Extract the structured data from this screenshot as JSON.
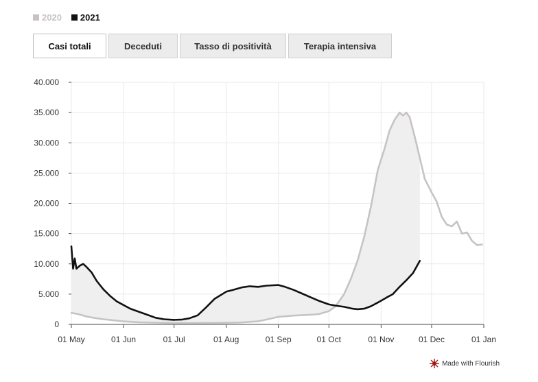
{
  "legend": [
    {
      "label": "2020",
      "color": "#c8c3c3"
    },
    {
      "label": "2021",
      "color": "#111111"
    }
  ],
  "tabs": [
    {
      "label": "Casi totali",
      "active": true
    },
    {
      "label": "Deceduti",
      "active": false
    },
    {
      "label": "Tasso di positività",
      "active": false
    },
    {
      "label": "Terapia intensiva",
      "active": false
    }
  ],
  "credit": {
    "label": "Made with Flourish",
    "icon": "flourish-logo-icon",
    "color": "#a11b1b"
  },
  "chart_data": {
    "type": "line",
    "title": "",
    "xlabel": "",
    "ylabel": "",
    "ylim": [
      0,
      40000
    ],
    "xlim": [
      "01 May",
      "01 Jan"
    ],
    "grid": true,
    "legend_position": "top-left",
    "y_ticks": [
      {
        "value": 0,
        "label": "0"
      },
      {
        "value": 5000,
        "label": "5.000"
      },
      {
        "value": 10000,
        "label": "10.000"
      },
      {
        "value": 15000,
        "label": "15.000"
      },
      {
        "value": 20000,
        "label": "20.000"
      },
      {
        "value": 25000,
        "label": "25.000"
      },
      {
        "value": 30000,
        "label": "30.000"
      },
      {
        "value": 35000,
        "label": "35.000"
      },
      {
        "value": 40000,
        "label": "40.000"
      }
    ],
    "x_ticks": [
      {
        "date": "01 May",
        "label": "01 May"
      },
      {
        "date": "01 Jun",
        "label": "01 Jun"
      },
      {
        "date": "01 Jul",
        "label": "01 Jul"
      },
      {
        "date": "01 Aug",
        "label": "01 Aug"
      },
      {
        "date": "01 Sep",
        "label": "01 Sep"
      },
      {
        "date": "01 Oct",
        "label": "01 Oct"
      },
      {
        "date": "01 Nov",
        "label": "01 Nov"
      },
      {
        "date": "01 Dec",
        "label": "01 Dec"
      },
      {
        "date": "01 Jan",
        "label": "01 Jan"
      }
    ],
    "series": [
      {
        "name": "2020",
        "color": "#c8c3c3",
        "points": [
          [
            "01 May",
            1900
          ],
          [
            "05 May",
            1700
          ],
          [
            "10 May",
            1300
          ],
          [
            "15 May",
            1050
          ],
          [
            "20 May",
            850
          ],
          [
            "25 May",
            700
          ],
          [
            "01 Jun",
            500
          ],
          [
            "10 Jun",
            350
          ],
          [
            "20 Jun",
            280
          ],
          [
            "01 Jul",
            220
          ],
          [
            "10 Jul",
            230
          ],
          [
            "20 Jul",
            240
          ],
          [
            "01 Aug",
            260
          ],
          [
            "10 Aug",
            320
          ],
          [
            "20 Aug",
            520
          ],
          [
            "25 Aug",
            800
          ],
          [
            "01 Sep",
            1250
          ],
          [
            "10 Sep",
            1450
          ],
          [
            "20 Sep",
            1600
          ],
          [
            "25 Sep",
            1700
          ],
          [
            "01 Oct",
            2200
          ],
          [
            "05 Oct",
            3000
          ],
          [
            "10 Oct",
            5000
          ],
          [
            "14 Oct",
            7500
          ],
          [
            "18 Oct",
            10500
          ],
          [
            "22 Oct",
            14500
          ],
          [
            "26 Oct",
            19500
          ],
          [
            "30 Oct",
            25500
          ],
          [
            "03 Nov",
            29000
          ],
          [
            "06 Nov",
            32000
          ],
          [
            "09 Nov",
            33800
          ],
          [
            "12 Nov",
            35000
          ],
          [
            "14 Nov",
            34500
          ],
          [
            "16 Nov",
            35000
          ],
          [
            "18 Nov",
            34200
          ],
          [
            "21 Nov",
            31000
          ],
          [
            "24 Nov",
            27500
          ],
          [
            "27 Nov",
            24000
          ],
          [
            "01 Dec",
            21800
          ],
          [
            "04 Dec",
            20300
          ],
          [
            "07 Dec",
            17800
          ],
          [
            "10 Dec",
            16500
          ],
          [
            "13 Dec",
            16200
          ],
          [
            "16 Dec",
            17000
          ],
          [
            "19 Dec",
            15000
          ],
          [
            "22 Dec",
            15200
          ],
          [
            "25 Dec",
            13800
          ],
          [
            "28 Dec",
            13100
          ],
          [
            "31 Dec",
            13200
          ]
        ]
      },
      {
        "name": "2021",
        "color": "#111111",
        "points": [
          [
            "01 May",
            12900
          ],
          [
            "02 May",
            9200
          ],
          [
            "03 May",
            10900
          ],
          [
            "04 May",
            9200
          ],
          [
            "06 May",
            9700
          ],
          [
            "08 May",
            10000
          ],
          [
            "10 May",
            9500
          ],
          [
            "13 May",
            8600
          ],
          [
            "16 May",
            7200
          ],
          [
            "20 May",
            5800
          ],
          [
            "24 May",
            4700
          ],
          [
            "28 May",
            3800
          ],
          [
            "01 Jun",
            3200
          ],
          [
            "05 Jun",
            2600
          ],
          [
            "10 Jun",
            2100
          ],
          [
            "15 Jun",
            1600
          ],
          [
            "20 Jun",
            1100
          ],
          [
            "25 Jun",
            850
          ],
          [
            "01 Jul",
            750
          ],
          [
            "06 Jul",
            800
          ],
          [
            "10 Jul",
            1000
          ],
          [
            "15 Jul",
            1500
          ],
          [
            "20 Jul",
            2800
          ],
          [
            "25 Jul",
            4200
          ],
          [
            "01 Aug",
            5400
          ],
          [
            "05 Aug",
            5700
          ],
          [
            "10 Aug",
            6100
          ],
          [
            "15 Aug",
            6300
          ],
          [
            "20 Aug",
            6200
          ],
          [
            "25 Aug",
            6400
          ],
          [
            "01 Sep",
            6500
          ],
          [
            "05 Sep",
            6200
          ],
          [
            "10 Sep",
            5700
          ],
          [
            "15 Sep",
            5100
          ],
          [
            "20 Sep",
            4500
          ],
          [
            "25 Sep",
            3900
          ],
          [
            "01 Oct",
            3300
          ],
          [
            "05 Oct",
            3100
          ],
          [
            "10 Oct",
            2900
          ],
          [
            "15 Oct",
            2600
          ],
          [
            "18 Oct",
            2500
          ],
          [
            "22 Oct",
            2600
          ],
          [
            "26 Oct",
            3000
          ],
          [
            "30 Oct",
            3600
          ],
          [
            "04 Nov",
            4400
          ],
          [
            "08 Nov",
            5000
          ],
          [
            "12 Nov",
            6200
          ],
          [
            "16 Nov",
            7300
          ],
          [
            "20 Nov",
            8500
          ],
          [
            "24 Nov",
            10500
          ]
        ]
      }
    ],
    "area_between": {
      "series": [
        "2020",
        "2021"
      ],
      "from": "01 May",
      "to": "24 Nov",
      "color": "#efefef"
    }
  }
}
